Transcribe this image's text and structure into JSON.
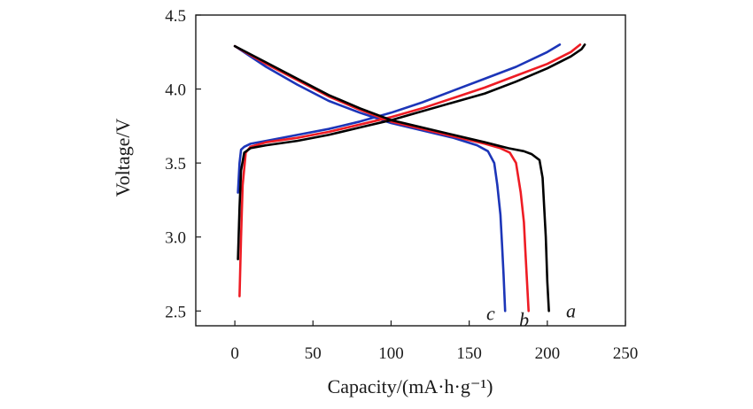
{
  "chart_data": {
    "type": "line",
    "title": "",
    "xlabel": "Capacity/(mA·h·g⁻¹)",
    "ylabel": "Voltage/V",
    "xlim": [
      -25,
      250
    ],
    "ylim": [
      2.4,
      4.5
    ],
    "xticks": [
      {
        "value": 0,
        "label": "0"
      },
      {
        "value": 50,
        "label": "50"
      },
      {
        "value": 100,
        "label": "100"
      },
      {
        "value": 150,
        "label": "150"
      },
      {
        "value": 200,
        "label": "200"
      },
      {
        "value": 250,
        "label": "250"
      }
    ],
    "yticks": [
      {
        "value": 2.5,
        "label": "2.5"
      },
      {
        "value": 3.0,
        "label": "3.0"
      },
      {
        "value": 3.5,
        "label": "3.5"
      },
      {
        "value": 4.0,
        "label": "4.0"
      },
      {
        "value": 4.5,
        "label": "4.5"
      }
    ],
    "grid": false,
    "series": [
      {
        "name": "a",
        "color": "#000000",
        "label_position": {
          "x": 212,
          "y": 2.5
        },
        "charge": [
          [
            2,
            2.85
          ],
          [
            3,
            3.2
          ],
          [
            4,
            3.45
          ],
          [
            6,
            3.57
          ],
          [
            10,
            3.6
          ],
          [
            20,
            3.62
          ],
          [
            40,
            3.65
          ],
          [
            60,
            3.69
          ],
          [
            80,
            3.74
          ],
          [
            100,
            3.79
          ],
          [
            120,
            3.85
          ],
          [
            140,
            3.91
          ],
          [
            160,
            3.97
          ],
          [
            180,
            4.05
          ],
          [
            200,
            4.14
          ],
          [
            215,
            4.22
          ],
          [
            222,
            4.27
          ],
          [
            224,
            4.3
          ]
        ],
        "discharge": [
          [
            0,
            4.29
          ],
          [
            20,
            4.18
          ],
          [
            40,
            4.07
          ],
          [
            60,
            3.96
          ],
          [
            80,
            3.87
          ],
          [
            100,
            3.79
          ],
          [
            120,
            3.74
          ],
          [
            140,
            3.69
          ],
          [
            160,
            3.64
          ],
          [
            175,
            3.6
          ],
          [
            185,
            3.58
          ],
          [
            190,
            3.56
          ],
          [
            195,
            3.52
          ],
          [
            197,
            3.4
          ],
          [
            198,
            3.2
          ],
          [
            199,
            3.0
          ],
          [
            200,
            2.7
          ],
          [
            201,
            2.5
          ]
        ]
      },
      {
        "name": "b",
        "color": "#ee1c24",
        "label_position": {
          "x": 182,
          "y": 2.44
        },
        "charge": [
          [
            3,
            2.6
          ],
          [
            4,
            3.0
          ],
          [
            5,
            3.35
          ],
          [
            7,
            3.57
          ],
          [
            10,
            3.61
          ],
          [
            20,
            3.64
          ],
          [
            40,
            3.67
          ],
          [
            60,
            3.71
          ],
          [
            80,
            3.76
          ],
          [
            100,
            3.81
          ],
          [
            120,
            3.87
          ],
          [
            140,
            3.94
          ],
          [
            160,
            4.01
          ],
          [
            180,
            4.09
          ],
          [
            200,
            4.17
          ],
          [
            215,
            4.25
          ],
          [
            221,
            4.3
          ]
        ],
        "discharge": [
          [
            0,
            4.29
          ],
          [
            20,
            4.17
          ],
          [
            40,
            4.06
          ],
          [
            60,
            3.95
          ],
          [
            80,
            3.86
          ],
          [
            100,
            3.78
          ],
          [
            120,
            3.73
          ],
          [
            140,
            3.68
          ],
          [
            160,
            3.63
          ],
          [
            170,
            3.6
          ],
          [
            176,
            3.57
          ],
          [
            180,
            3.5
          ],
          [
            183,
            3.3
          ],
          [
            185,
            3.1
          ],
          [
            186,
            2.9
          ],
          [
            187,
            2.7
          ],
          [
            188,
            2.5
          ]
        ]
      },
      {
        "name": "c",
        "color": "#1c35b8",
        "label_position": {
          "x": 161,
          "y": 2.48
        },
        "charge": [
          [
            2,
            3.3
          ],
          [
            3,
            3.5
          ],
          [
            4,
            3.59
          ],
          [
            6,
            3.61
          ],
          [
            10,
            3.63
          ],
          [
            20,
            3.65
          ],
          [
            40,
            3.69
          ],
          [
            60,
            3.73
          ],
          [
            80,
            3.78
          ],
          [
            100,
            3.84
          ],
          [
            120,
            3.91
          ],
          [
            140,
            3.99
          ],
          [
            160,
            4.07
          ],
          [
            180,
            4.15
          ],
          [
            200,
            4.25
          ],
          [
            208,
            4.3
          ]
        ],
        "discharge": [
          [
            0,
            4.29
          ],
          [
            20,
            4.15
          ],
          [
            40,
            4.03
          ],
          [
            60,
            3.92
          ],
          [
            80,
            3.84
          ],
          [
            100,
            3.77
          ],
          [
            120,
            3.72
          ],
          [
            140,
            3.67
          ],
          [
            155,
            3.62
          ],
          [
            162,
            3.58
          ],
          [
            166,
            3.5
          ],
          [
            168,
            3.35
          ],
          [
            170,
            3.15
          ],
          [
            171,
            2.95
          ],
          [
            172,
            2.75
          ],
          [
            173,
            2.5
          ]
        ]
      }
    ]
  }
}
